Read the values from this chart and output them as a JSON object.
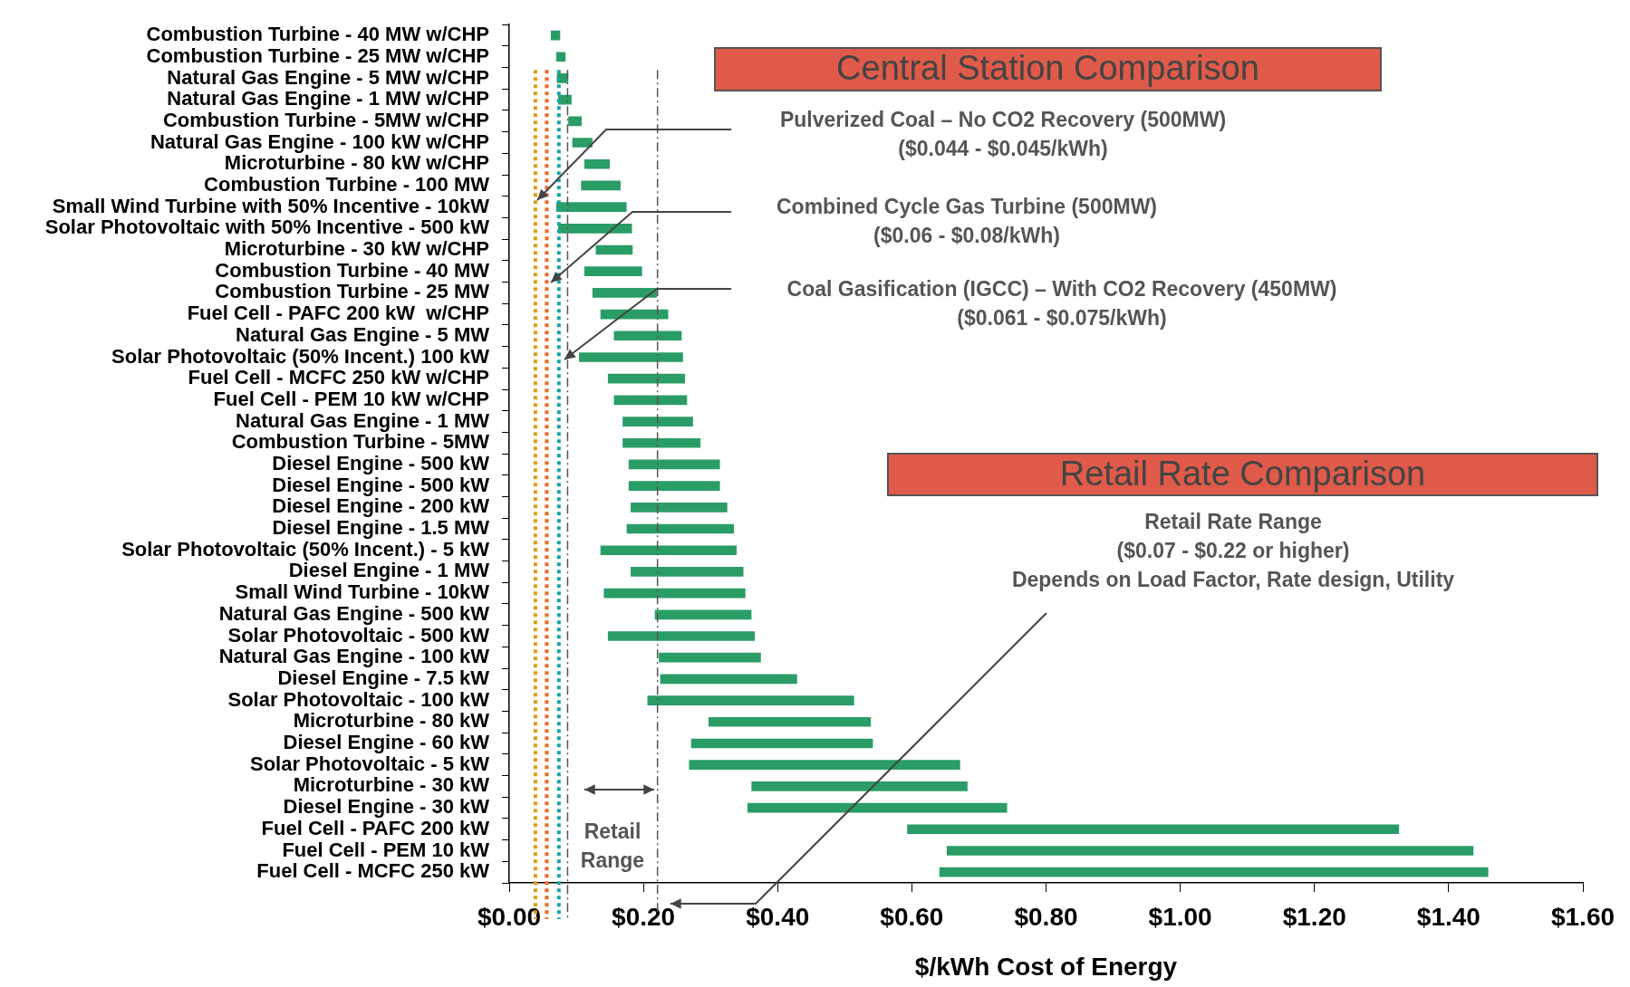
{
  "chart_data": {
    "type": "bar",
    "orientation": "horizontal",
    "xlabel": "$/kWh Cost of Energy",
    "categories": [
      "Combustion Turbine - 40 MW w/CHP",
      "Combustion Turbine - 25 MW w/CHP",
      "Natural Gas Engine - 5 MW w/CHP",
      "Natural Gas Engine - 1 MW w/CHP",
      "Combustion Turbine - 5MW w/CHP",
      "Natural Gas Engine - 100 kW w/CHP",
      "Microturbine - 80 kW w/CHP",
      "Combustion Turbine - 100 MW",
      "Small Wind Turbine with 50% Incentive - 10kW",
      "Solar Photovoltaic with 50% Incentive - 500 kW",
      "Microturbine - 30 kW w/CHP",
      "Combustion Turbine - 40 MW",
      "Combustion Turbine - 25 MW",
      "Fuel Cell - PAFC 200 kW  w/CHP",
      "Natural Gas Engine - 5 MW",
      "Solar Photovoltaic (50% Incent.) 100 kW",
      "Fuel Cell - MCFC 250 kW w/CHP",
      "Fuel Cell - PEM 10 kW w/CHP",
      "Natural Gas Engine - 1 MW",
      "Combustion Turbine - 5MW",
      "Diesel Engine - 500 kW",
      "Diesel Engine - 500 kW",
      "Diesel Engine - 200 kW",
      "Diesel Engine - 1.5 MW",
      "Solar Photovoltaic (50% Incent.) - 5 kW",
      "Diesel Engine - 1 MW",
      "Small Wind Turbine - 10kW",
      "Natural Gas Engine - 500 kW",
      "Solar Photovoltaic - 500 kW",
      "Natural Gas Engine - 100 kW",
      "Diesel Engine - 7.5 kW",
      "Solar Photovoltaic - 100 kW",
      "Microturbine - 80 kW",
      "Diesel Engine - 60 kW",
      "Solar Photovoltaic - 5 kW",
      "Microturbine - 30 kW",
      "Diesel Engine - 30 kW",
      "Fuel Cell - PAFC 200 kW",
      "Fuel Cell - PEM 10 kW",
      "Fuel Cell - MCFC 250 kW"
    ],
    "base": [
      0.062,
      0.07,
      0.071,
      0.073,
      0.088,
      0.094,
      0.112,
      0.107,
      0.07,
      0.073,
      0.129,
      0.112,
      0.124,
      0.136,
      0.156,
      0.104,
      0.147,
      0.156,
      0.169,
      0.169,
      0.178,
      0.178,
      0.181,
      0.175,
      0.136,
      0.181,
      0.141,
      0.217,
      0.147,
      0.223,
      0.225,
      0.206,
      0.297,
      0.271,
      0.268,
      0.361,
      0.355,
      0.593,
      0.652,
      0.641
    ],
    "values": [
      0.014,
      0.014,
      0.017,
      0.02,
      0.02,
      0.03,
      0.038,
      0.059,
      0.105,
      0.11,
      0.055,
      0.086,
      0.096,
      0.101,
      0.101,
      0.155,
      0.115,
      0.109,
      0.105,
      0.116,
      0.136,
      0.136,
      0.144,
      0.16,
      0.203,
      0.168,
      0.211,
      0.144,
      0.219,
      0.152,
      0.204,
      0.308,
      0.242,
      0.271,
      0.404,
      0.322,
      0.387,
      0.733,
      0.785,
      0.818
    ],
    "color": "#2a9d66",
    "xlim": [
      0,
      1.6
    ],
    "xticks": [
      {
        "value": 0,
        "label": "$0.00"
      },
      {
        "value": 0.2,
        "label": "$0.20"
      },
      {
        "value": 0.4,
        "label": "$0.40"
      },
      {
        "value": 0.6,
        "label": "$0.60"
      },
      {
        "value": 0.8,
        "label": "$0.80"
      },
      {
        "value": 1.0,
        "label": "$1.00"
      },
      {
        "value": 1.2,
        "label": "$1.20"
      },
      {
        "value": 1.4,
        "label": "$1.40"
      },
      {
        "value": 1.6,
        "label": "$1.60"
      }
    ],
    "grid": false,
    "legend": false,
    "ref_lines": [
      {
        "axis": "x",
        "value": 0.039,
        "color": "#e39b12",
        "line_style": "dotted"
      },
      {
        "axis": "x",
        "value": 0.056,
        "color": "#f26522",
        "line_style": "dotted"
      },
      {
        "axis": "x",
        "value": 0.074,
        "color": "#1aa3a3",
        "line_style": "dotted"
      },
      {
        "axis": "x",
        "value": 0.087,
        "color": "#555555",
        "line_style": "dashed"
      },
      {
        "axis": "x",
        "value": 0.221,
        "color": "#555555",
        "line_style": "dashed"
      }
    ],
    "annotations": [
      "Central Station Comparison",
      "Pulverized Coal – No CO2 Recovery (500MW)",
      "($0.044 - $0.045/kWh)",
      "Combined Cycle Gas Turbine (500MW)",
      "($0.06 - $0.08/kWh)",
      "Coal Gasification (IGCC) – With CO2 Recovery (450MW)",
      "($0.061 - $0.075/kWh)",
      "Retail Rate Comparison",
      "Retail Rate Range",
      "($0.07 - $0.22 or higher)",
      "Depends on Load Factor, Rate design, Utility",
      "Retail",
      "Range"
    ]
  }
}
